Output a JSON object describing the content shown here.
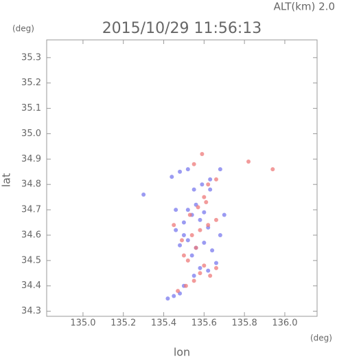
{
  "chart_data": {
    "type": "scatter",
    "title": "2015/10/29 11:56:13",
    "annotation": "ALT(km) 2.0",
    "y_unit": "(deg)",
    "x_unit": "(deg)",
    "x_label": "lon",
    "y_label": "lat",
    "xlim": [
      134.82,
      136.16
    ],
    "ylim": [
      34.28,
      35.37
    ],
    "xticks": [
      {
        "value": 135,
        "label": "135.0"
      },
      135.2,
      135.4,
      135.6,
      135.8,
      {
        "value": 136,
        "label": "136.0"
      }
    ],
    "yticks": [
      34.3,
      34.4,
      34.5,
      34.6,
      34.7,
      34.8,
      34.9,
      {
        "value": 35,
        "label": "35.0"
      },
      35.1,
      35.2,
      35.3
    ],
    "series": [
      {
        "color": "#7a7aee",
        "x": [
          135.42,
          135.45,
          135.48,
          135.5,
          135.55,
          135.58,
          135.62,
          135.66,
          135.48,
          135.52,
          135.56,
          135.6,
          135.64,
          135.68,
          135.46,
          135.5,
          135.54,
          135.58,
          135.62,
          135.52,
          135.56,
          135.6,
          135.55,
          135.59,
          135.63,
          135.44,
          135.48,
          135.52,
          135.5,
          135.54,
          135.3,
          135.68,
          135.63,
          135.46,
          135.7
        ],
        "y": [
          34.35,
          34.36,
          34.37,
          34.4,
          34.44,
          34.47,
          34.46,
          34.49,
          34.56,
          34.58,
          34.55,
          34.57,
          34.54,
          34.6,
          34.62,
          34.65,
          34.68,
          34.66,
          34.63,
          34.7,
          34.72,
          34.69,
          34.78,
          34.8,
          34.82,
          34.83,
          34.85,
          34.86,
          34.6,
          34.52,
          34.76,
          34.86,
          34.78,
          34.7,
          34.68
        ]
      },
      {
        "color": "#ee7a7a",
        "x": [
          135.47,
          135.51,
          135.55,
          135.58,
          135.6,
          135.63,
          135.66,
          135.5,
          135.54,
          135.58,
          135.62,
          135.66,
          135.53,
          135.57,
          135.61,
          135.49,
          135.55,
          135.62,
          135.82,
          135.94,
          135.59,
          135.45,
          135.56,
          135.52,
          135.66,
          135.6
        ],
        "y": [
          34.38,
          34.4,
          34.42,
          34.45,
          34.48,
          34.44,
          34.47,
          34.52,
          34.6,
          34.62,
          34.64,
          34.66,
          34.68,
          34.71,
          34.73,
          34.58,
          34.88,
          34.8,
          34.89,
          34.86,
          34.92,
          34.64,
          34.55,
          34.5,
          34.82,
          34.75
        ]
      }
    ]
  }
}
